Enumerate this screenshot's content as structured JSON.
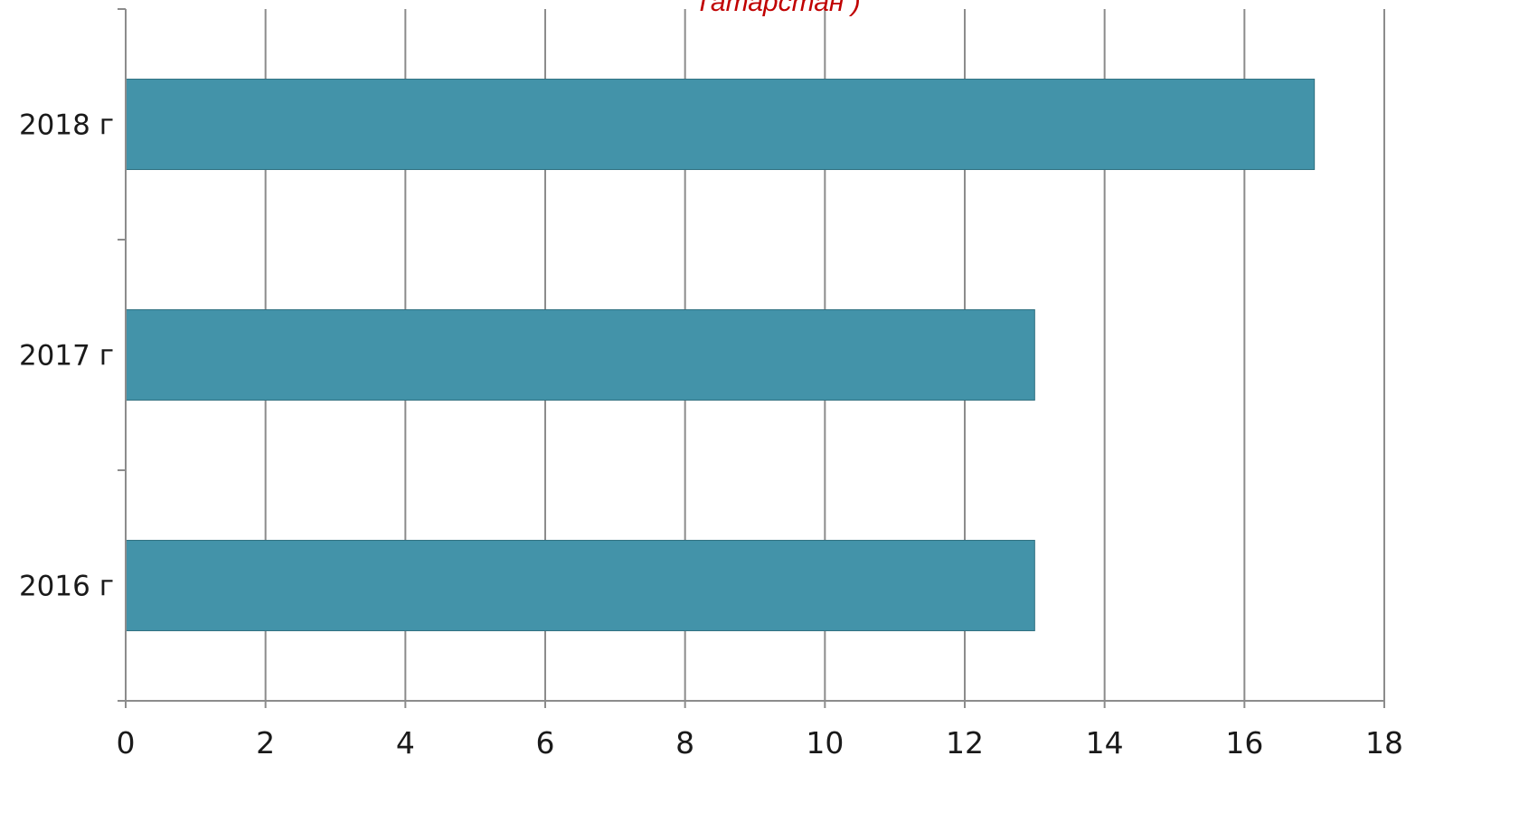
{
  "chart_data": {
    "type": "bar",
    "orientation": "horizontal",
    "title": "Татарстан )",
    "title_color": "#c00000",
    "categories": [
      "2018 г",
      "2017 г",
      "2016 г"
    ],
    "values": [
      17,
      13,
      13
    ],
    "bar_color": "#4393a9",
    "xlim": [
      0,
      18
    ],
    "x_ticks": [
      0,
      2,
      4,
      6,
      8,
      10,
      12,
      14,
      16,
      18
    ],
    "xlabel": "",
    "ylabel": "",
    "grid": "vertical",
    "legend": "none"
  }
}
